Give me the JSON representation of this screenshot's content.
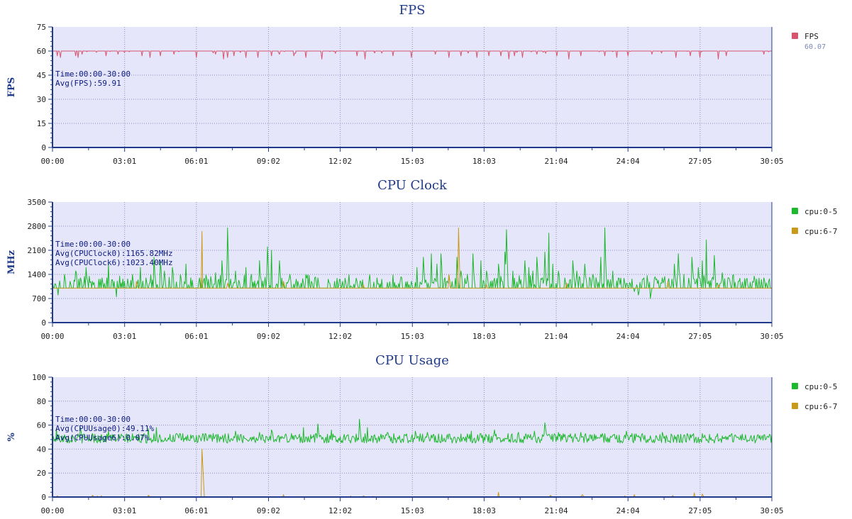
{
  "x_ticks": [
    "00:00",
    "03:01",
    "06:01",
    "09:02",
    "12:02",
    "15:03",
    "18:03",
    "21:04",
    "24:04",
    "27:05",
    "30:05"
  ],
  "colors": {
    "plot_bg": "#e6e6fa",
    "axis": "#1f3a8a",
    "grid": "#8c8cc0",
    "fps": "#d8546c",
    "cpu05": "#1db82d",
    "cpu67": "#c99a1a"
  },
  "chart_data": [
    {
      "type": "line",
      "title": "FPS",
      "ylabel": "FPS",
      "ylim": [
        0,
        75
      ],
      "yticks": [
        "0",
        "15",
        "30",
        "45",
        "60",
        "75"
      ],
      "xlim": [
        "00:00",
        "30:05"
      ],
      "grid": true,
      "legend_position": "right",
      "annotations": [
        "Time:00:00-30:00",
        "Avg(FPS):59.91"
      ],
      "series": [
        {
          "name": "FPS",
          "value_label": "60.07",
          "color": "#d8546c",
          "baseline": 60,
          "dips": [
            [
              "00:12",
              57
            ],
            [
              "00:20",
              56
            ],
            [
              "00:58",
              57
            ],
            [
              "01:05",
              56
            ],
            [
              "01:15",
              58
            ],
            [
              "02:15",
              57
            ],
            [
              "02:45",
              58
            ],
            [
              "03:45",
              57
            ],
            [
              "04:05",
              56
            ],
            [
              "04:30",
              57
            ],
            [
              "05:05",
              58
            ],
            [
              "06:00",
              56
            ],
            [
              "06:50",
              58
            ],
            [
              "07:10",
              55
            ],
            [
              "07:20",
              56
            ],
            [
              "07:35",
              57
            ],
            [
              "08:05",
              56
            ],
            [
              "08:35",
              56
            ],
            [
              "09:10",
              57
            ],
            [
              "09:30",
              58
            ],
            [
              "10:05",
              57
            ],
            [
              "10:35",
              56
            ],
            [
              "11:15",
              55
            ],
            [
              "12:45",
              57
            ],
            [
              "13:05",
              55
            ],
            [
              "14:15",
              57
            ],
            [
              "15:00",
              56
            ],
            [
              "16:00",
              58
            ],
            [
              "16:35",
              56
            ],
            [
              "17:05",
              57
            ],
            [
              "17:45",
              56
            ],
            [
              "18:15",
              57
            ],
            [
              "18:45",
              57
            ],
            [
              "19:05",
              55
            ],
            [
              "19:20",
              57
            ],
            [
              "19:40",
              56
            ],
            [
              "20:15",
              58
            ],
            [
              "21:05",
              57
            ],
            [
              "21:35",
              55
            ],
            [
              "22:05",
              57
            ],
            [
              "23:05",
              57
            ],
            [
              "23:35",
              56
            ],
            [
              "24:05",
              57
            ],
            [
              "25:05",
              58
            ],
            [
              "26:05",
              56
            ],
            [
              "26:40",
              57
            ],
            [
              "27:05",
              56
            ],
            [
              "27:50",
              55
            ],
            [
              "28:10",
              57
            ],
            [
              "29:45",
              58
            ]
          ]
        }
      ]
    },
    {
      "type": "line",
      "title": "CPU Clock",
      "ylabel": "MHz",
      "ylim": [
        0,
        3500
      ],
      "yticks": [
        "0",
        "700",
        "1400",
        "2100",
        "2800",
        "3500"
      ],
      "xlim": [
        "00:00",
        "30:05"
      ],
      "grid": true,
      "legend_position": "right",
      "annotations": [
        "Time:00:00-30:00",
        "Avg(CPUClock0):1165.82MHz",
        "Avg(CPUClock6):1023.40MHz"
      ],
      "series": [
        {
          "name": "cpu:0-5",
          "color": "#1db82d",
          "baseline": 1000,
          "spikes": [
            [
              "00:15",
              800
            ],
            [
              "00:30",
              1400
            ],
            [
              "00:45",
              1200
            ],
            [
              "00:58",
              1500
            ],
            [
              "01:10",
              1300
            ],
            [
              "01:25",
              1600
            ],
            [
              "01:40",
              1200
            ],
            [
              "02:05",
              1300
            ],
            [
              "02:20",
              1700
            ],
            [
              "02:40",
              750
            ],
            [
              "03:00",
              1200
            ],
            [
              "03:20",
              1400
            ],
            [
              "03:40",
              1600
            ],
            [
              "03:55",
              1300
            ],
            [
              "04:15",
              1900
            ],
            [
              "04:30",
              1800
            ],
            [
              "04:40",
              1500
            ],
            [
              "05:00",
              1600
            ],
            [
              "05:20",
              1400
            ],
            [
              "05:35",
              1700
            ],
            [
              "06:10",
              1300
            ],
            [
              "06:50",
              1450
            ],
            [
              "07:05",
              1800
            ],
            [
              "07:20",
              2750
            ],
            [
              "07:40",
              1500
            ],
            [
              "08:05",
              1600
            ],
            [
              "08:20",
              1400
            ],
            [
              "08:40",
              1800
            ],
            [
              "09:00",
              2200
            ],
            [
              "09:10",
              2100
            ],
            [
              "09:30",
              1800
            ],
            [
              "09:55",
              1400
            ],
            [
              "10:15",
              1200
            ],
            [
              "10:35",
              1400
            ],
            [
              "11:05",
              1300
            ],
            [
              "15:00",
              1200
            ],
            [
              "15:15",
              1600
            ],
            [
              "15:30",
              1900
            ],
            [
              "15:50",
              2000
            ],
            [
              "16:05",
              1700
            ],
            [
              "16:15",
              2000
            ],
            [
              "16:30",
              1200
            ],
            [
              "16:55",
              1900
            ],
            [
              "17:05",
              1500
            ],
            [
              "17:20",
              1400
            ],
            [
              "17:35",
              2000
            ],
            [
              "17:55",
              1800
            ],
            [
              "18:10",
              1500
            ],
            [
              "18:20",
              1200
            ],
            [
              "18:40",
              1700
            ],
            [
              "18:55",
              2050
            ],
            [
              "19:00",
              2700
            ],
            [
              "19:15",
              1500
            ],
            [
              "19:45",
              1800
            ],
            [
              "19:55",
              1600
            ],
            [
              "20:05",
              1500
            ],
            [
              "20:15",
              1900
            ],
            [
              "20:35",
              2050
            ],
            [
              "20:45",
              2600
            ],
            [
              "20:55",
              1700
            ],
            [
              "21:10",
              1500
            ],
            [
              "21:25",
              1300
            ],
            [
              "21:45",
              1800
            ],
            [
              "21:55",
              1500
            ],
            [
              "22:15",
              1700
            ],
            [
              "22:35",
              1400
            ],
            [
              "22:55",
              1900
            ],
            [
              "23:05",
              2750
            ],
            [
              "23:25",
              1500
            ],
            [
              "23:40",
              1300
            ],
            [
              "23:55",
              1150
            ],
            [
              "24:20",
              900
            ],
            [
              "24:30",
              800
            ],
            [
              "24:45",
              1300
            ],
            [
              "25:00",
              700
            ],
            [
              "25:30",
              1300
            ],
            [
              "26:00",
              1700
            ],
            [
              "26:10",
              2000
            ],
            [
              "26:25",
              1400
            ],
            [
              "26:45",
              1900
            ],
            [
              "27:00",
              1600
            ],
            [
              "27:10",
              1800
            ],
            [
              "27:20",
              2400
            ],
            [
              "27:40",
              1950
            ],
            [
              "28:00",
              1450
            ],
            [
              "28:15",
              1300
            ],
            [
              "28:40",
              1200
            ],
            [
              "29:00",
              1250
            ],
            [
              "29:20",
              1350
            ],
            [
              "29:45",
              1300
            ]
          ]
        },
        {
          "name": "cpu:6-7",
          "color": "#c99a1a",
          "baseline": 1000,
          "spikes": [
            [
              "06:15",
              2650
            ],
            [
              "03:30",
              1200
            ],
            [
              "07:20",
              1150
            ],
            [
              "09:40",
              1200
            ],
            [
              "13:00",
              1100
            ],
            [
              "16:35",
              1400
            ],
            [
              "16:58",
              2750
            ],
            [
              "18:10",
              1100
            ],
            [
              "21:30",
              1150
            ],
            [
              "25:45",
              1200
            ],
            [
              "27:50",
              1100
            ]
          ]
        }
      ]
    },
    {
      "type": "line",
      "title": "CPU Usage",
      "ylabel": "%",
      "ylim": [
        0,
        100
      ],
      "yticks": [
        "0",
        "20",
        "40",
        "60",
        "80",
        "100"
      ],
      "xlim": [
        "00:00",
        "30:05"
      ],
      "grid": true,
      "legend_position": "right",
      "annotations": [
        "Time:00:00-30:00",
        "Avg(CPUUsage0):49.11%",
        "Avg(CPUUsage6):0.07%"
      ],
      "series": [
        {
          "name": "cpu:0-5",
          "color": "#1db82d",
          "baseline": 49,
          "spikes": [
            [
              "00:10",
              57
            ],
            [
              "00:30",
              52
            ],
            [
              "01:10",
              58
            ],
            [
              "01:40",
              53
            ],
            [
              "02:20",
              55
            ],
            [
              "03:10",
              52
            ],
            [
              "04:00",
              57
            ],
            [
              "04:20",
              58
            ],
            [
              "05:10",
              53
            ],
            [
              "06:20",
              52
            ],
            [
              "07:40",
              55
            ],
            [
              "08:40",
              54
            ],
            [
              "09:10",
              56
            ],
            [
              "10:00",
              53
            ],
            [
              "10:30",
              58
            ],
            [
              "11:05",
              61
            ],
            [
              "11:40",
              56
            ],
            [
              "12:50",
              65
            ],
            [
              "13:10",
              58
            ],
            [
              "14:00",
              54
            ],
            [
              "15:10",
              55
            ],
            [
              "15:40",
              54
            ],
            [
              "17:30",
              55
            ],
            [
              "17:55",
              53
            ],
            [
              "18:30",
              56
            ],
            [
              "19:30",
              54
            ],
            [
              "20:10",
              55
            ],
            [
              "20:35",
              62
            ],
            [
              "21:10",
              54
            ],
            [
              "22:05",
              54
            ],
            [
              "23:00",
              53
            ],
            [
              "24:00",
              55
            ],
            [
              "24:40",
              53
            ],
            [
              "25:30",
              54
            ],
            [
              "26:10",
              52
            ],
            [
              "27:10",
              53
            ],
            [
              "28:00",
              51
            ],
            [
              "28:40",
              50
            ],
            [
              "29:30",
              52
            ]
          ]
        },
        {
          "name": "cpu:6-7",
          "color": "#c99a1a",
          "baseline": 0,
          "spikes": [
            [
              "06:15",
              40
            ],
            [
              "06:18",
              27
            ],
            [
              "01:40",
              1.5
            ],
            [
              "04:00",
              1.5
            ],
            [
              "09:40",
              2
            ],
            [
              "13:00",
              1
            ],
            [
              "18:40",
              4
            ],
            [
              "20:50",
              1.5
            ],
            [
              "22:10",
              2
            ],
            [
              "24:20",
              2
            ],
            [
              "26:50",
              3.5
            ],
            [
              "27:10",
              2.5
            ]
          ]
        }
      ]
    }
  ]
}
